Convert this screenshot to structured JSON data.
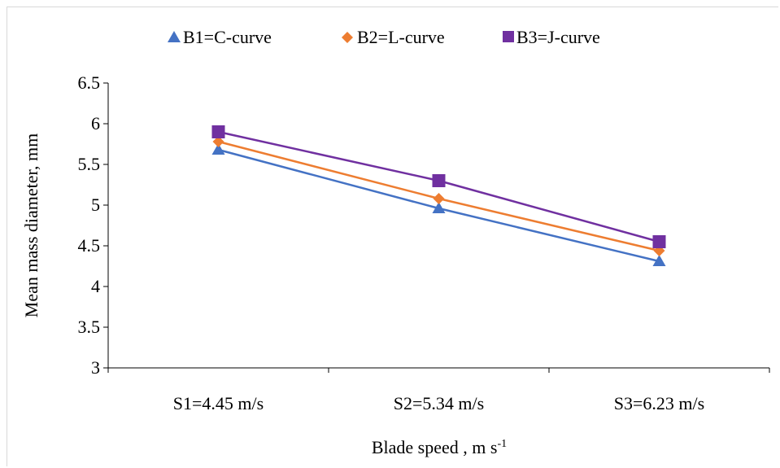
{
  "chart_data": {
    "type": "line",
    "categories": [
      "S1=4.45 m/s",
      "S2=5.34 m/s",
      "S3=6.23 m/s"
    ],
    "series": [
      {
        "name": "B1=C-curve",
        "values": [
          5.68,
          4.96,
          4.31
        ],
        "color": "#4472c4",
        "marker": "triangle"
      },
      {
        "name": "B2=L-curve",
        "values": [
          5.78,
          5.08,
          4.44
        ],
        "color": "#ed7d31",
        "marker": "diamond"
      },
      {
        "name": "B3=J-curve",
        "values": [
          5.9,
          5.3,
          4.55
        ],
        "color": "#7030a0",
        "marker": "square"
      }
    ],
    "ylim": [
      3,
      6.5
    ],
    "yticks": [
      "3",
      "3.5",
      "4",
      "4.5",
      "5",
      "5.5",
      "6",
      "6.5"
    ],
    "ylabel": "Mean mass diameter, mm",
    "xlabel": {
      "main": "Blade speed , m s",
      "superscript": "-1"
    },
    "legend_position": "top",
    "grid": false
  }
}
